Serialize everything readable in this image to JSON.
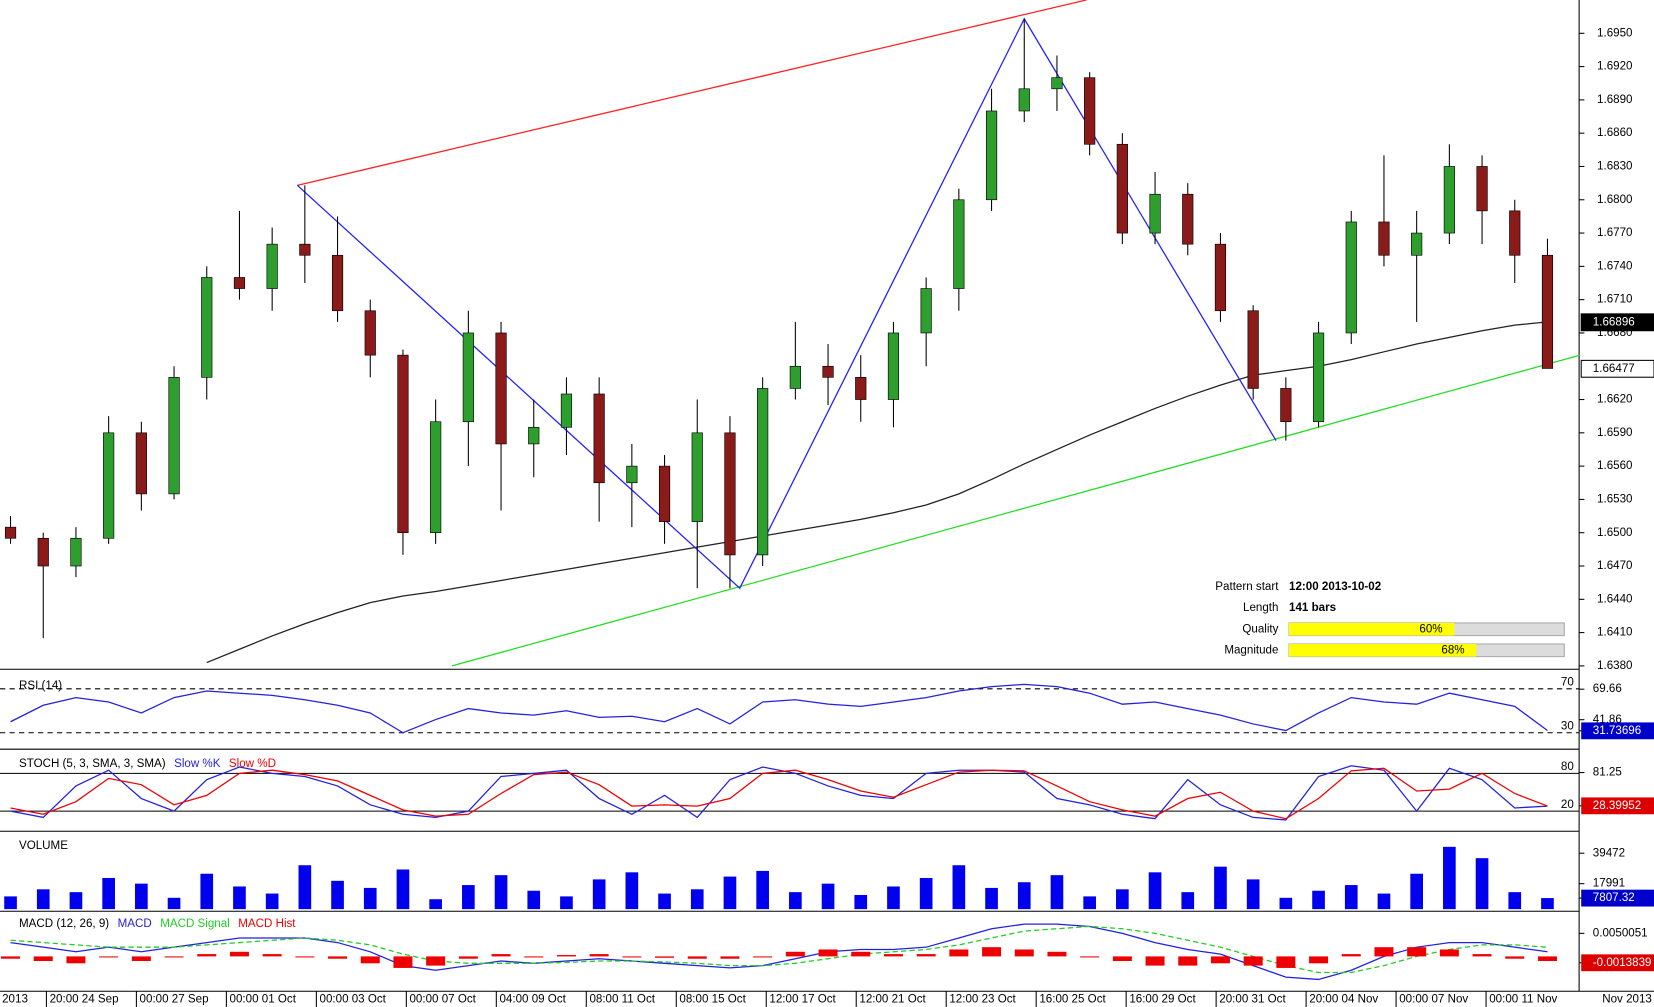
{
  "chart_data": [
    {
      "type": "candlestick",
      "candles": [
        [
          1.6505,
          1.6515,
          1.649,
          1.6495
        ],
        [
          1.6495,
          1.65,
          1.6405,
          1.647
        ],
        [
          1.647,
          1.6505,
          1.646,
          1.6495
        ],
        [
          1.6495,
          1.6605,
          1.649,
          1.659
        ],
        [
          1.659,
          1.66,
          1.652,
          1.6535
        ],
        [
          1.6535,
          1.665,
          1.653,
          1.664
        ],
        [
          1.664,
          1.674,
          1.662,
          1.673
        ],
        [
          1.673,
          1.679,
          1.671,
          1.672
        ],
        [
          1.672,
          1.6775,
          1.67,
          1.676
        ],
        [
          1.676,
          1.6813,
          1.6725,
          1.675
        ],
        [
          1.675,
          1.6785,
          1.669,
          1.67
        ],
        [
          1.67,
          1.671,
          1.664,
          1.666
        ],
        [
          1.666,
          1.6665,
          1.648,
          1.65
        ],
        [
          1.65,
          1.662,
          1.649,
          1.66
        ],
        [
          1.66,
          1.67,
          1.656,
          1.668
        ],
        [
          1.668,
          1.669,
          1.652,
          1.658
        ],
        [
          1.658,
          1.662,
          1.655,
          1.6595
        ],
        [
          1.6595,
          1.664,
          1.657,
          1.6625
        ],
        [
          1.6625,
          1.664,
          1.651,
          1.6545
        ],
        [
          1.6545,
          1.658,
          1.6505,
          1.656
        ],
        [
          1.656,
          1.657,
          1.649,
          1.651
        ],
        [
          1.651,
          1.662,
          1.645,
          1.659
        ],
        [
          1.659,
          1.6605,
          1.645,
          1.648
        ],
        [
          1.648,
          1.664,
          1.647,
          1.663
        ],
        [
          1.663,
          1.669,
          1.662,
          1.665
        ],
        [
          1.665,
          1.667,
          1.6615,
          1.664
        ],
        [
          1.664,
          1.666,
          1.66,
          1.662
        ],
        [
          1.662,
          1.669,
          1.6595,
          1.668
        ],
        [
          1.668,
          1.673,
          1.665,
          1.672
        ],
        [
          1.672,
          1.681,
          1.67,
          1.68
        ],
        [
          1.68,
          1.69,
          1.679,
          1.688
        ],
        [
          1.688,
          1.6963,
          1.687,
          1.69
        ],
        [
          1.69,
          1.693,
          1.688,
          1.691
        ],
        [
          1.691,
          1.6915,
          1.684,
          1.685
        ],
        [
          1.685,
          1.686,
          1.676,
          1.677
        ],
        [
          1.677,
          1.6825,
          1.676,
          1.6805
        ],
        [
          1.6805,
          1.6815,
          1.675,
          1.676
        ],
        [
          1.676,
          1.677,
          1.669,
          1.67
        ],
        [
          1.67,
          1.6705,
          1.662,
          1.663
        ],
        [
          1.663,
          1.664,
          1.6583,
          1.66
        ],
        [
          1.66,
          1.669,
          1.6595,
          1.668
        ],
        [
          1.668,
          1.679,
          1.667,
          1.678
        ],
        [
          1.678,
          1.684,
          1.674,
          1.675
        ],
        [
          1.675,
          1.679,
          1.669,
          1.677
        ],
        [
          1.677,
          1.685,
          1.676,
          1.683
        ],
        [
          1.683,
          1.684,
          1.676,
          1.679
        ],
        [
          1.679,
          1.68,
          1.6725,
          1.675
        ],
        [
          1.675,
          1.6765,
          1.6648,
          1.6648
        ]
      ],
      "up_color": "#2e9e2e",
      "down_color": "#8b1a1a",
      "moving_average": {
        "color": "#222222",
        "values": [
          null,
          null,
          null,
          null,
          null,
          null,
          1.6383,
          1.6395,
          1.6407,
          1.6418,
          1.6428,
          1.6437,
          1.6443,
          1.6447,
          1.6452,
          1.6457,
          1.6462,
          1.6467,
          1.6472,
          1.6477,
          1.6482,
          1.6487,
          1.6492,
          1.6497,
          1.6502,
          1.6507,
          1.6512,
          1.6518,
          1.6525,
          1.6535,
          1.6548,
          1.6562,
          1.6575,
          1.6588,
          1.66,
          1.6612,
          1.6623,
          1.6633,
          1.6642,
          1.6646,
          1.665,
          1.6656,
          1.6663,
          1.667,
          1.6676,
          1.6682,
          1.6687,
          1.669
        ]
      },
      "trendlines": [
        {
          "color": "#ff2020",
          "x": [
            8.77,
            32.9
          ],
          "values": [
            1.6813,
            1.698
          ]
        },
        {
          "color": "#22dd22",
          "x": [
            13.5,
            48
          ],
          "values": [
            1.638,
            1.666
          ]
        },
        {
          "color": "#2020ff",
          "x": [
            8.77,
            22.3,
            31,
            38.7
          ],
          "values": [
            1.6813,
            1.645,
            1.6963,
            1.6583
          ]
        }
      ],
      "ylim": [
        1.6377,
        1.698
      ],
      "yticks": [
        {
          "value": 1.638,
          "label": "1.6380"
        },
        {
          "value": 1.641,
          "label": "1.6410"
        },
        {
          "value": 1.644,
          "label": "1.6440"
        },
        {
          "value": 1.647,
          "label": "1.6470"
        },
        {
          "value": 1.65,
          "label": "1.6500"
        },
        {
          "value": 1.653,
          "label": "1.6530"
        },
        {
          "value": 1.656,
          "label": "1.6560"
        },
        {
          "value": 1.659,
          "label": "1.6590"
        },
        {
          "value": 1.662,
          "label": "1.6620"
        },
        {
          "value": 1.668,
          "label": "1.6680"
        },
        {
          "value": 1.671,
          "label": "1.6710"
        },
        {
          "value": 1.674,
          "label": "1.6740"
        },
        {
          "value": 1.677,
          "label": "1.6770"
        },
        {
          "value": 1.68,
          "label": "1.6800"
        },
        {
          "value": 1.683,
          "label": "1.6830"
        },
        {
          "value": 1.686,
          "label": "1.6860"
        },
        {
          "value": 1.689,
          "label": "1.6890"
        },
        {
          "value": 1.692,
          "label": "1.6920"
        },
        {
          "value": 1.695,
          "label": "1.6950"
        }
      ],
      "price_labels": [
        1.66896,
        1.66477
      ],
      "pattern": {
        "rows": [
          {
            "label": "Pattern start",
            "value": "12:00 2013-10-02"
          },
          {
            "label": "Length",
            "value": "141 bars"
          }
        ],
        "bars": [
          {
            "label": "Quality",
            "value": 60,
            "value_label": "60%"
          },
          {
            "label": "Magnitude",
            "value": 68,
            "value_label": "68%"
          }
        ]
      }
    },
    {
      "type": "line",
      "title": "RSI (14)",
      "ylim": [
        15,
        84
      ],
      "yticks": [
        70,
        30
      ],
      "box_color": "#0000cc",
      "series": [
        {
          "color": "#2222dd",
          "values": [
            40,
            55,
            62,
            58,
            48,
            62,
            68,
            66,
            64,
            60,
            55,
            48,
            30,
            42,
            52,
            48,
            46,
            50,
            44,
            45,
            40,
            52,
            38,
            58,
            60,
            56,
            54,
            58,
            62,
            68,
            72,
            74,
            72,
            66,
            56,
            58,
            52,
            46,
            38,
            32,
            48,
            62,
            58,
            56,
            66,
            60,
            54,
            32
          ]
        }
      ],
      "right_labels": [
        69.66,
        41.86,
        31.73696
      ]
    },
    {
      "type": "line",
      "title": "STOCH (5, 3, SMA, 3, SMA)",
      "ylim": [
        -12,
        115
      ],
      "yticks": [
        80,
        20
      ],
      "box_color": "#dd0000",
      "series": [
        {
          "name": "Slow %K",
          "color": "#2222dd",
          "values": [
            20,
            10,
            60,
            85,
            40,
            20,
            70,
            90,
            80,
            75,
            60,
            30,
            15,
            10,
            20,
            75,
            80,
            85,
            40,
            15,
            45,
            10,
            70,
            90,
            80,
            60,
            45,
            40,
            80,
            85,
            85,
            82,
            40,
            30,
            15,
            8,
            70,
            30,
            10,
            6,
            75,
            92,
            85,
            20,
            88,
            70,
            25,
            28
          ]
        },
        {
          "name": "Slow %D",
          "color": "#ee0000",
          "values": [
            25,
            15,
            35,
            72,
            62,
            30,
            45,
            80,
            85,
            78,
            68,
            45,
            22,
            12,
            15,
            48,
            78,
            82,
            62,
            28,
            30,
            28,
            40,
            80,
            85,
            70,
            52,
            42,
            62,
            82,
            85,
            84,
            60,
            35,
            22,
            12,
            40,
            50,
            20,
            8,
            40,
            84,
            88,
            52,
            55,
            80,
            48,
            28
          ]
        }
      ],
      "right_labels": [
        81.25,
        28.39952
      ]
    },
    {
      "type": "bar",
      "title": "VOLUME",
      "ylim": [
        0,
        53500
      ],
      "color": "#0000ee",
      "box_color": "#0000cc",
      "values": [
        9000,
        14000,
        12000,
        22000,
        18000,
        8000,
        25000,
        16000,
        11000,
        31000,
        20000,
        15000,
        28000,
        7000,
        17000,
        24000,
        13000,
        9000,
        21000,
        26000,
        11000,
        14000,
        23000,
        27000,
        12000,
        18000,
        10000,
        16000,
        22000,
        31000,
        15000,
        19000,
        24000,
        9000,
        14000,
        26000,
        12000,
        30000,
        21000,
        8000,
        13000,
        17000,
        11000,
        25000,
        44000,
        36000,
        12000,
        7807.32
      ],
      "right_labels": [
        39472,
        17991,
        7807.32
      ]
    },
    {
      "type": "line",
      "title": "MACD (12, 26, 9)",
      "ylim": [
        -0.0071,
        0.0098
      ],
      "box_color": "#dd0000",
      "series": [
        {
          "name": "MACD",
          "color": "#2222dd",
          "values": [
            0.003,
            0.002,
            0.001,
            0.002,
            0.001,
            0.002,
            0.003,
            0.004,
            0.004,
            0.004,
            0.003,
            0.001,
            -0.002,
            -0.003,
            -0.002,
            -0.001,
            -0.0015,
            -0.001,
            -0.0005,
            -0.001,
            -0.0015,
            -0.002,
            -0.0025,
            -0.002,
            -0.0005,
            0.001,
            0.0015,
            0.0015,
            0.002,
            0.004,
            0.006,
            0.007,
            0.007,
            0.0065,
            0.005,
            0.003,
            0.0015,
            0.0005,
            -0.002,
            -0.0045,
            -0.005,
            -0.003,
            0.0,
            0.002,
            0.003,
            0.003,
            0.002,
            0.001
          ]
        },
        {
          "name": "MACD Signal",
          "color": "#22cc22",
          "dash": true,
          "values": [
            0.0035,
            0.003,
            0.0025,
            0.002,
            0.002,
            0.002,
            0.0025,
            0.003,
            0.0035,
            0.004,
            0.0035,
            0.0025,
            0.0005,
            -0.001,
            -0.0015,
            -0.0015,
            -0.0015,
            -0.0013,
            -0.001,
            -0.001,
            -0.0012,
            -0.0015,
            -0.002,
            -0.002,
            -0.0015,
            -0.0005,
            0.0005,
            0.001,
            0.0015,
            0.0025,
            0.004,
            0.0055,
            0.006,
            0.0065,
            0.006,
            0.005,
            0.0035,
            0.002,
            0.0,
            -0.002,
            -0.0035,
            -0.0035,
            -0.002,
            0.0,
            0.0015,
            0.0025,
            0.0025,
            0.002
          ]
        },
        {
          "name": "MACD Hist",
          "color": "#ee0000",
          "style": "bar",
          "values": [
            -0.0005,
            -0.001,
            -0.0015,
            0,
            -0.001,
            0,
            0.0005,
            0.001,
            0.0005,
            0,
            -0.0005,
            -0.0015,
            -0.0025,
            -0.002,
            -0.0005,
            0.0005,
            0,
            0.0003,
            0.0005,
            0,
            -0.0003,
            -0.0005,
            -0.0005,
            0,
            0.001,
            0.0015,
            0.001,
            0.0005,
            0.0005,
            0.0015,
            0.002,
            0.0015,
            0.001,
            0,
            -0.001,
            -0.002,
            -0.002,
            -0.0015,
            -0.002,
            -0.0025,
            -0.0015,
            0.0005,
            0.002,
            0.002,
            0.0015,
            0.0005,
            -0.0005,
            -0.001
          ]
        }
      ],
      "right_labels": [
        0.0050051,
        -0.0013839
      ]
    }
  ],
  "time_axis": {
    "labels": [
      "2013",
      "20:00 24 Sep",
      "00:00 27 Sep",
      "00:00 01 Oct",
      "00:00 03 Oct",
      "00:00 07 Oct",
      "04:00 09 Oct",
      "08:00 11 Oct",
      "08:00 15 Oct",
      "12:00 17 Oct",
      "12:00 21 Oct",
      "12:00 23 Oct",
      "16:00 25 Oct",
      "16:00 29 Oct",
      "20:00 31 Oct",
      "20:00 04 Nov",
      "00:00 07 Nov",
      "00:00 11 Nov"
    ],
    "end_label": "Nov 2013"
  }
}
